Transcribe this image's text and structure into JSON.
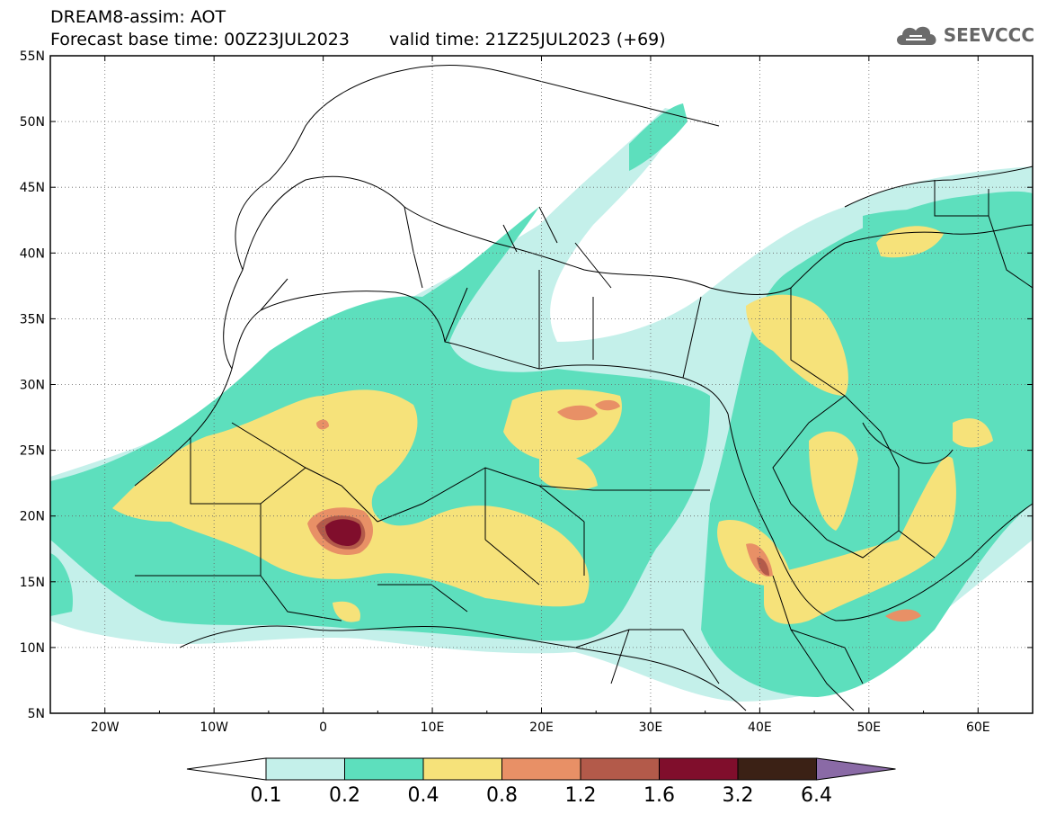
{
  "header": {
    "line1": "DREAM8-assim: AOT",
    "base_time": "Forecast base time: 00Z23JUL2023",
    "valid_time": "valid time: 21Z25JUL2023 (+69)"
  },
  "logo": {
    "text": "SEEVCCC",
    "icon": "cloud-icon"
  },
  "map": {
    "lon_range": [
      -25,
      65
    ],
    "lat_range": [
      5,
      55
    ],
    "lat_ticks": [
      "55N",
      "50N",
      "45N",
      "40N",
      "35N",
      "30N",
      "25N",
      "20N",
      "15N",
      "10N",
      "5N"
    ],
    "lon_ticks": [
      "20W",
      "10W",
      "0",
      "10E",
      "20E",
      "30E",
      "40E",
      "50E",
      "60E"
    ],
    "grid": "dotted"
  },
  "colorbar": {
    "labels": [
      "0.1",
      "0.2",
      "0.4",
      "0.8",
      "1.2",
      "1.6",
      "3.2",
      "6.4"
    ],
    "colors": [
      "#c4f0ea",
      "#5ddfbd",
      "#f6e27a",
      "#e89066",
      "#b35a4a",
      "#800e2c",
      "#3b2115",
      "#8a6aa6"
    ]
  }
}
